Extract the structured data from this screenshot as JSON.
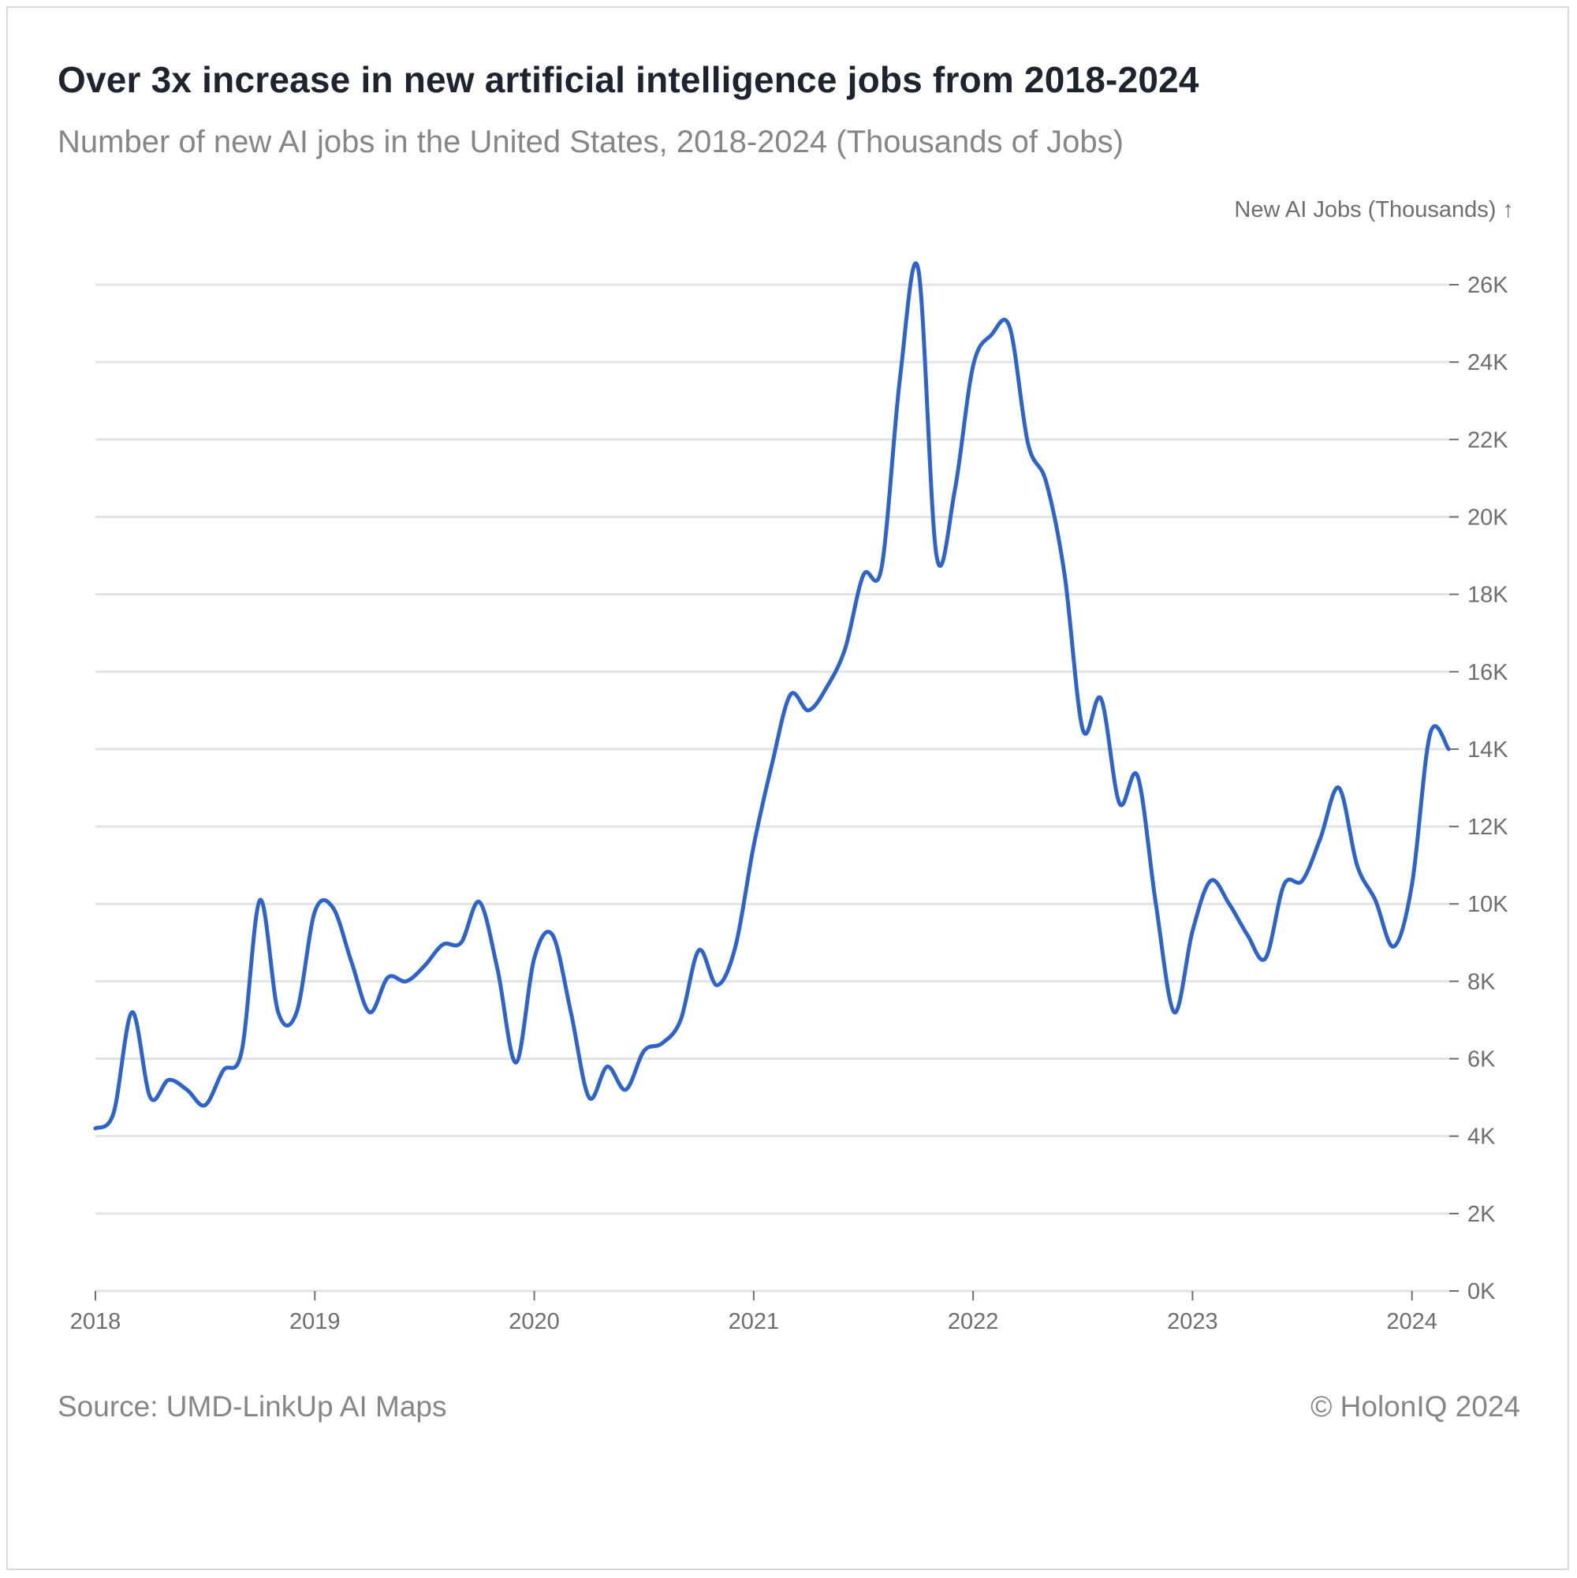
{
  "title": "Over 3x increase in new artificial intelligence jobs from 2018-2024",
  "subtitle": "Number of new AI jobs in the United States, 2018-2024 (Thousands of Jobs)",
  "footer": {
    "source": "Source: UMD-LinkUp AI Maps",
    "copyright": "© HolonIQ 2024"
  },
  "colors": {
    "line": "#2e63c9",
    "grid": "#e3e3e3",
    "text_muted": "#868686"
  },
  "chart_data": {
    "type": "line",
    "title": "Over 3x increase in new artificial intelligence jobs from 2018-2024",
    "xlabel": "",
    "ylabel": "New AI Jobs (Thousands) ↑",
    "xlim": [
      2018.0,
      2024.17
    ],
    "ylim": [
      0,
      26000
    ],
    "y_ticks": [
      0,
      2000,
      4000,
      6000,
      8000,
      10000,
      12000,
      14000,
      16000,
      18000,
      20000,
      22000,
      24000,
      26000
    ],
    "y_tick_labels": [
      "0K",
      "2K",
      "4K",
      "6K",
      "8K",
      "10K",
      "12K",
      "14K",
      "16K",
      "18K",
      "20K",
      "22K",
      "24K",
      "26K"
    ],
    "x_ticks": [
      2018,
      2019,
      2020,
      2021,
      2022,
      2023,
      2024
    ],
    "x_tick_labels": [
      "2018",
      "2019",
      "2020",
      "2021",
      "2022",
      "2023",
      "2024"
    ],
    "grid": true,
    "series": [
      {
        "name": "New AI Jobs",
        "x": [
          2018.0,
          2018.083,
          2018.167,
          2018.25,
          2018.333,
          2018.417,
          2018.5,
          2018.583,
          2018.667,
          2018.75,
          2018.833,
          2018.917,
          2019.0,
          2019.083,
          2019.167,
          2019.25,
          2019.333,
          2019.417,
          2019.5,
          2019.583,
          2019.667,
          2019.75,
          2019.833,
          2019.917,
          2020.0,
          2020.083,
          2020.167,
          2020.25,
          2020.333,
          2020.417,
          2020.5,
          2020.583,
          2020.667,
          2020.75,
          2020.833,
          2020.917,
          2021.0,
          2021.083,
          2021.167,
          2021.25,
          2021.333,
          2021.417,
          2021.5,
          2021.583,
          2021.667,
          2021.75,
          2021.833,
          2021.917,
          2022.0,
          2022.083,
          2022.167,
          2022.25,
          2022.333,
          2022.417,
          2022.5,
          2022.583,
          2022.667,
          2022.75,
          2022.833,
          2022.917,
          2023.0,
          2023.083,
          2023.167,
          2023.25,
          2023.333,
          2023.417,
          2023.5,
          2023.583,
          2023.667,
          2023.75,
          2023.833,
          2023.917,
          2024.0,
          2024.083,
          2024.167
        ],
        "values": [
          4200,
          4600,
          7200,
          5000,
          5450,
          5200,
          4800,
          5700,
          6200,
          10100,
          7200,
          7200,
          9800,
          9900,
          8500,
          7200,
          8100,
          8000,
          8400,
          8950,
          9000,
          10050,
          8300,
          5900,
          8600,
          9200,
          7200,
          5000,
          5800,
          5200,
          6200,
          6400,
          7000,
          8800,
          7900,
          8900,
          11500,
          13600,
          15400,
          15000,
          15600,
          16600,
          18500,
          18700,
          23600,
          26400,
          19000,
          20700,
          23900,
          24700,
          24900,
          21900,
          20900,
          18500,
          14500,
          15300,
          12600,
          13300,
          10000,
          7200,
          9300,
          10600,
          10000,
          9200,
          8600,
          10500,
          10600,
          11700,
          13000,
          11000,
          10100,
          8900,
          10500,
          14400,
          14000
        ]
      }
    ]
  }
}
